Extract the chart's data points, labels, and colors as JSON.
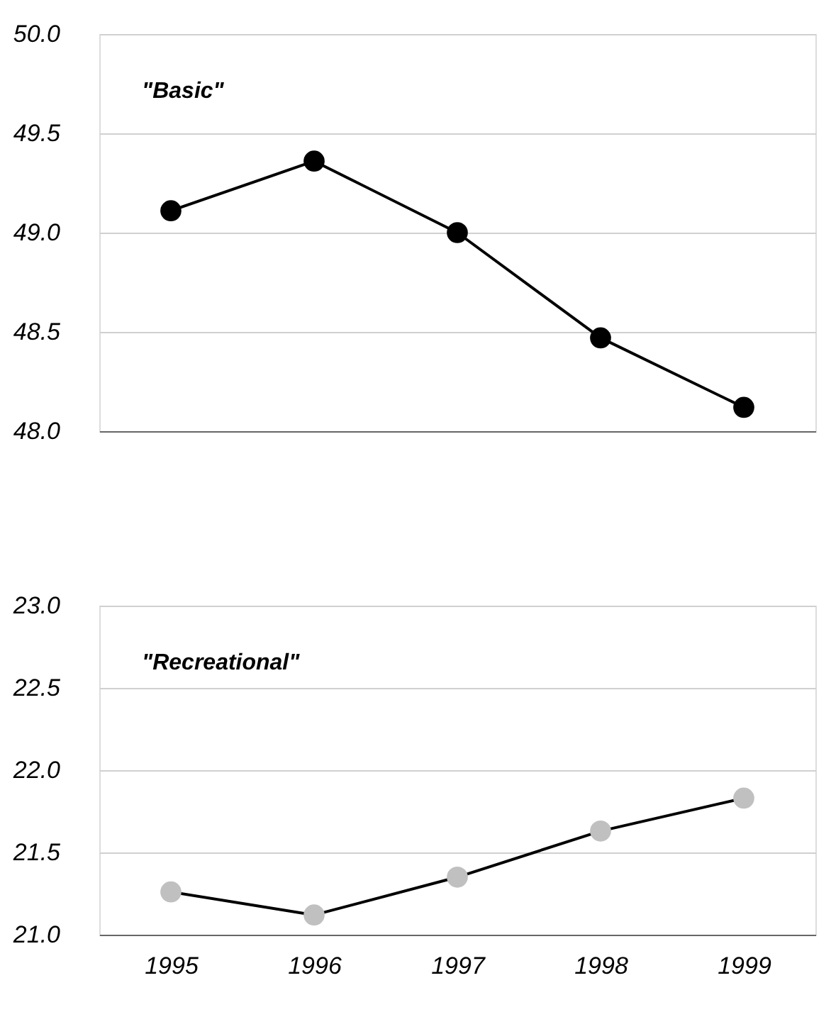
{
  "chart_data": [
    {
      "type": "line",
      "categories": [
        "1995",
        "1996",
        "1997",
        "1998",
        "1999"
      ],
      "series": [
        {
          "name": "\"Basic\"",
          "color": "#000000",
          "values": [
            49.11,
            49.36,
            49.0,
            48.47,
            48.12
          ]
        }
      ],
      "ylim": [
        48.0,
        50.0
      ],
      "yticks": [
        {
          "value": 48.0,
          "label": "48.0"
        },
        {
          "value": 48.5,
          "label": "48.5"
        },
        {
          "value": 49.0,
          "label": "49.0"
        },
        {
          "value": 49.5,
          "label": "49.5"
        },
        {
          "value": 50.0,
          "label": "50.0"
        }
      ],
      "grid": "y",
      "marker": "circle",
      "line_style": "solid",
      "tick_labels": "y"
    },
    {
      "type": "line",
      "categories": [
        "1995",
        "1996",
        "1997",
        "1998",
        "1999"
      ],
      "series": [
        {
          "name": "\"Recreational\"",
          "color": "#c0c0c0",
          "values": [
            21.26,
            21.12,
            21.35,
            21.63,
            21.83
          ]
        }
      ],
      "ylim": [
        21.0,
        23.0
      ],
      "yticks": [
        {
          "value": 21.0,
          "label": "21.0"
        },
        {
          "value": 21.5,
          "label": "21.5"
        },
        {
          "value": 22.0,
          "label": "22.0"
        },
        {
          "value": 22.5,
          "label": "22.5"
        },
        {
          "value": 23.0,
          "label": "23.0"
        }
      ],
      "grid": "y",
      "marker": "circle",
      "line_style": "solid"
    }
  ]
}
